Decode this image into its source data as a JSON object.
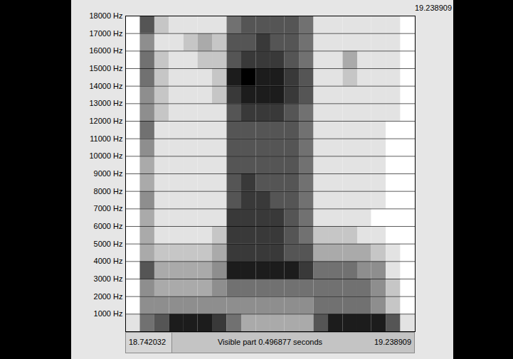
{
  "chart_data": {
    "type": "heatmap",
    "annotations": [
      "Visible part 0.496877 seconds"
    ],
    "xlim": [
      18.742032,
      19.238909
    ],
    "ylim": [
      0,
      18000
    ],
    "yticks": [
      {
        "value": 1000,
        "label": "1000 Hz"
      },
      {
        "value": 2000,
        "label": "2000 Hz"
      },
      {
        "value": 3000,
        "label": "3000 Hz"
      },
      {
        "value": 4000,
        "label": "4000 Hz"
      },
      {
        "value": 5000,
        "label": "5000 Hz"
      },
      {
        "value": 6000,
        "label": "6000 Hz"
      },
      {
        "value": 7000,
        "label": "7000 Hz"
      },
      {
        "value": 8000,
        "label": "8000 Hz"
      },
      {
        "value": 9000,
        "label": "9000 Hz"
      },
      {
        "value": 10000,
        "label": "10000 Hz"
      },
      {
        "value": 11000,
        "label": "11000 Hz"
      },
      {
        "value": 12000,
        "label": "12000 Hz"
      },
      {
        "value": 13000,
        "label": "13000 Hz"
      },
      {
        "value": 14000,
        "label": "14000 Hz"
      },
      {
        "value": 15000,
        "label": "15000 Hz"
      },
      {
        "value": 16000,
        "label": "16000 Hz"
      },
      {
        "value": 17000,
        "label": "17000 Hz"
      },
      {
        "value": 18000,
        "label": "18000 Hz"
      }
    ],
    "grid": true,
    "tick_labels": "y",
    "time_bins": [
      18.742032,
      18.767,
      18.792,
      18.817,
      18.842,
      18.866,
      18.891,
      18.916,
      18.941,
      18.966,
      18.991,
      19.015,
      19.04,
      19.065,
      19.09,
      19.115,
      19.14,
      19.164,
      19.189,
      19.214,
      19.238909
    ],
    "frequency_bins": [
      0,
      1000,
      2000,
      3000,
      4000,
      5000,
      6000,
      7000,
      8000,
      9000,
      10000,
      11000,
      12000,
      13000,
      14000,
      15000,
      16000,
      17000,
      18000
    ],
    "color_range": [
      0,
      9
    ],
    "cells": [
      [
        1,
        5,
        6,
        8,
        8,
        8,
        7,
        5,
        3,
        3,
        3,
        3,
        3,
        6,
        8,
        8,
        8,
        8,
        6,
        1
      ],
      [
        0,
        4,
        4,
        4,
        4,
        4,
        4,
        4,
        4,
        4,
        4,
        4,
        4,
        5,
        5,
        5,
        5,
        4,
        2,
        0
      ],
      [
        0,
        4,
        3,
        3,
        3,
        3,
        4,
        5,
        5,
        5,
        5,
        5,
        5,
        5,
        5,
        5,
        5,
        4,
        2,
        0
      ],
      [
        0,
        6,
        3,
        3,
        3,
        3,
        4,
        8,
        8,
        8,
        8,
        8,
        7,
        5,
        5,
        5,
        4,
        4,
        1,
        0
      ],
      [
        0,
        3,
        2,
        2,
        2,
        2,
        3,
        7,
        7,
        7,
        7,
        6,
        6,
        3,
        3,
        3,
        3,
        2,
        1,
        0
      ],
      [
        0,
        3,
        1,
        1,
        1,
        1,
        2,
        7,
        7,
        7,
        7,
        6,
        5,
        2,
        2,
        2,
        1,
        1,
        0,
        0
      ],
      [
        0,
        3,
        1,
        1,
        1,
        1,
        1,
        7,
        7,
        7,
        7,
        6,
        5,
        1,
        1,
        1,
        1,
        0,
        0,
        0
      ],
      [
        0,
        4,
        1,
        1,
        1,
        1,
        1,
        6,
        7,
        7,
        6,
        6,
        5,
        1,
        1,
        1,
        1,
        1,
        0,
        0
      ],
      [
        0,
        3,
        1,
        1,
        1,
        1,
        1,
        6,
        7,
        6,
        6,
        6,
        5,
        1,
        1,
        1,
        1,
        1,
        0,
        0
      ],
      [
        0,
        3,
        1,
        1,
        1,
        1,
        1,
        6,
        6,
        6,
        6,
        6,
        5,
        1,
        1,
        1,
        1,
        1,
        0,
        0
      ],
      [
        0,
        4,
        1,
        1,
        1,
        1,
        1,
        6,
        6,
        6,
        6,
        6,
        5,
        1,
        1,
        1,
        1,
        1,
        0,
        0
      ],
      [
        0,
        5,
        1,
        1,
        1,
        1,
        1,
        6,
        6,
        6,
        6,
        6,
        5,
        1,
        1,
        1,
        1,
        1,
        0,
        0
      ],
      [
        0,
        4,
        2,
        1,
        1,
        1,
        1,
        6,
        7,
        7,
        7,
        6,
        5,
        1,
        1,
        1,
        1,
        1,
        1,
        0
      ],
      [
        0,
        4,
        2,
        1,
        1,
        1,
        2,
        7,
        8,
        8,
        8,
        7,
        6,
        1,
        1,
        1,
        1,
        1,
        1,
        0
      ],
      [
        0,
        5,
        2,
        1,
        1,
        1,
        2,
        8,
        9,
        8,
        8,
        7,
        6,
        1,
        1,
        2,
        1,
        1,
        1,
        0
      ],
      [
        0,
        5,
        2,
        1,
        1,
        2,
        2,
        6,
        7,
        7,
        7,
        6,
        5,
        1,
        1,
        3,
        1,
        1,
        1,
        0
      ],
      [
        0,
        4,
        1,
        1,
        2,
        3,
        2,
        6,
        6,
        7,
        6,
        6,
        5,
        1,
        1,
        1,
        1,
        1,
        1,
        0
      ],
      [
        0,
        6,
        2,
        1,
        1,
        1,
        1,
        5,
        6,
        6,
        6,
        6,
        5,
        1,
        1,
        1,
        1,
        1,
        1,
        0
      ]
    ]
  }
}
